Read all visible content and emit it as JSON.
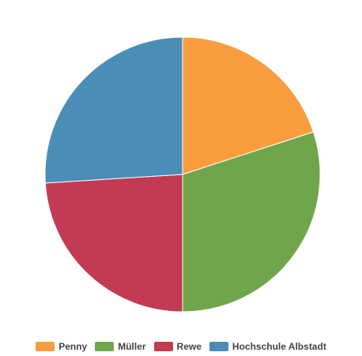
{
  "chart_data": {
    "type": "pie",
    "title": "",
    "slices": [
      {
        "label": "Penny",
        "value": 20,
        "color": "#f99d3e"
      },
      {
        "label": "Müller",
        "value": 30,
        "color": "#70a64b"
      },
      {
        "label": "Rewe",
        "value": 24,
        "color": "#c33a53"
      },
      {
        "label": "Hochschule Albstadt",
        "value": 26,
        "color": "#4a8db7"
      }
    ],
    "start_angle": "top",
    "direction": "clockwise",
    "legend": {
      "position": "bottom-center"
    }
  }
}
